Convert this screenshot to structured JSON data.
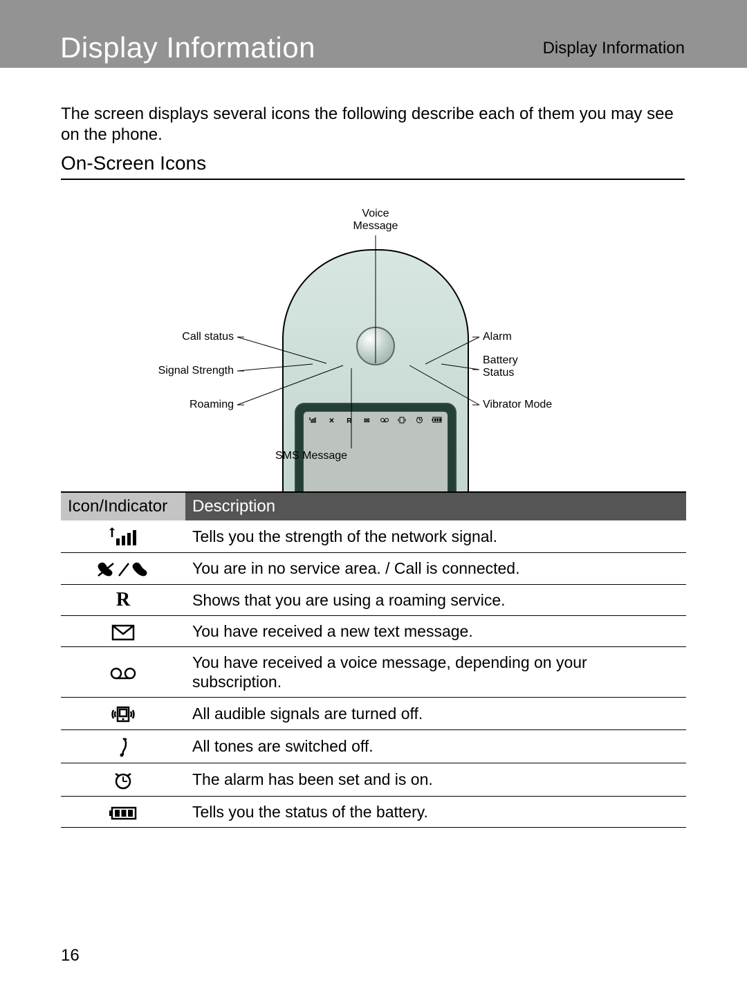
{
  "header": {
    "title": "Display Information",
    "breadcrumb": "Display Information"
  },
  "intro": "The screen displays several icons the following describe each of them you may see on the phone.",
  "section_title": "On-Screen Icons",
  "diagram": {
    "labels": {
      "voice_message_l1": "Voice",
      "voice_message_l2": "Message",
      "call_status": "Call status",
      "signal_strength": "Signal Strength",
      "roaming": "Roaming",
      "alarm": "Alarm",
      "battery_l1": "Battery",
      "battery_l2": "Status",
      "vibrator": "Vibrator Mode",
      "sms": "SMS Message"
    }
  },
  "table": {
    "header_icon": "Icon/Indicator",
    "header_desc": "Description",
    "rows": [
      {
        "icon": "signal",
        "desc": "Tells you the strength of the network signal."
      },
      {
        "icon": "call",
        "desc": "You are in no service area. / Call is connected."
      },
      {
        "icon": "roaming",
        "desc": "Shows that you are using a roaming service."
      },
      {
        "icon": "sms",
        "desc": "You have received a new text message."
      },
      {
        "icon": "voicemail",
        "desc": "You have received a voice message, depending on your subscription."
      },
      {
        "icon": "vibrate",
        "desc": "All audible signals are turned off."
      },
      {
        "icon": "mute",
        "desc": "All tones are switched off."
      },
      {
        "icon": "alarm",
        "desc": "The alarm has been set and is on."
      },
      {
        "icon": "battery",
        "desc": "Tells you the status of the battery."
      }
    ]
  },
  "page_number": "16",
  "styles": {
    "header_bg": "#939393",
    "header_title_color": "#ffffff",
    "header_title_fontsize": 42,
    "breadcrumb_fontsize": 24,
    "body_fontsize": 24,
    "section_fontsize": 28,
    "table_header_bg_col1": "#c4c4c4",
    "table_header_bg_col2": "#555555",
    "table_header_color_col2": "#ffffff",
    "row_border": "#000000",
    "phone_bg_top": "#d8e6e2",
    "phone_bg_bot": "#b5cac2",
    "screen_outer": "#234038",
    "screen_inner": "#bdc3bf",
    "label_fontsize": 16
  }
}
